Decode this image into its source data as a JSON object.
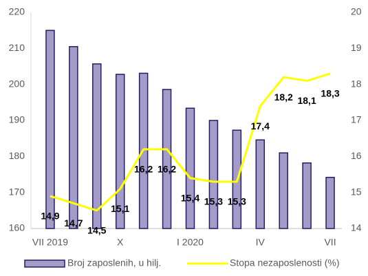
{
  "chart_data": {
    "type": "bar_line",
    "categories": [
      "VII 2019",
      null,
      null,
      "X",
      null,
      null,
      "I 2020",
      null,
      null,
      "IV",
      null,
      null,
      "VII"
    ],
    "series": [
      {
        "name": "Broj zaposlenih, u hilj.",
        "type": "bar",
        "color": "#a59bc8",
        "values": [
          215,
          210.5,
          205.7,
          202.8,
          203.1,
          198.6,
          193.4,
          190,
          187.3,
          184.6,
          181,
          178.2,
          174.2
        ]
      },
      {
        "name": "Stopa nezaposlenosti (%)",
        "type": "line",
        "axis": "y2",
        "color": "#ffff00",
        "values": [
          14.9,
          14.7,
          14.5,
          15.1,
          16.2,
          16.2,
          15.4,
          15.3,
          15.3,
          17.4,
          18.2,
          18.1,
          18.3
        ],
        "value_labels": [
          "14,9",
          "14,7",
          "14,5",
          "15,1",
          "16,2",
          "16,2",
          "15,4",
          "15,3",
          "15,3",
          "17,4",
          "18,2",
          "18,1",
          "18,3"
        ]
      }
    ],
    "ylim": [
      160,
      220
    ],
    "yticks": [
      160,
      170,
      180,
      190,
      200,
      210,
      220
    ],
    "y2lim": [
      14,
      20
    ],
    "y2ticks": [
      14,
      15,
      16,
      17,
      18,
      19,
      20
    ],
    "grid": false,
    "legend": "bottom"
  }
}
